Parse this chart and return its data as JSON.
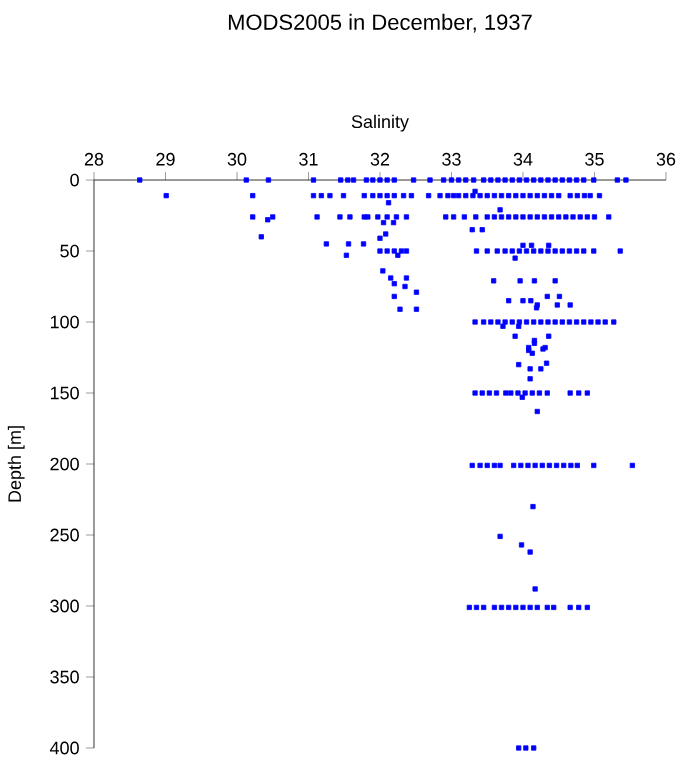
{
  "chart_data": {
    "type": "scatter",
    "title": "MODS2005 in December, 1937",
    "xlabel": "Salinity",
    "ylabel": "Depth [m]",
    "color": "#0000ff",
    "marker": "square",
    "xlim": [
      28,
      36
    ],
    "ylim": [
      400,
      0
    ],
    "xticks": [
      28,
      29,
      30,
      31,
      32,
      33,
      34,
      35,
      36
    ],
    "yticks": [
      0,
      50,
      100,
      150,
      200,
      250,
      300,
      350,
      400
    ],
    "x": [
      28.64,
      30.13,
      30.44,
      31.07,
      31.45,
      31.55,
      31.63,
      31.81,
      31.9,
      32.0,
      32.1,
      32.2,
      32.47,
      32.7,
      32.89,
      33.0,
      33.1,
      33.2,
      33.31,
      33.45,
      33.55,
      33.65,
      33.75,
      33.85,
      33.95,
      34.05,
      34.15,
      34.25,
      34.35,
      34.45,
      34.55,
      34.65,
      34.75,
      34.85,
      34.99,
      35.32,
      35.44,
      29.01,
      30.22,
      31.07,
      31.18,
      31.3,
      31.49,
      31.78,
      31.9,
      32.0,
      32.1,
      32.2,
      32.33,
      32.44,
      32.68,
      32.84,
      32.95,
      33.03,
      33.1,
      33.2,
      33.3,
      33.4,
      33.5,
      33.6,
      33.7,
      33.8,
      33.9,
      34.0,
      34.1,
      34.2,
      34.3,
      34.4,
      34.5,
      34.66,
      34.76,
      34.86,
      34.94,
      35.07,
      33.33,
      32.12,
      33.68,
      30.22,
      30.5,
      31.12,
      31.44,
      31.58,
      31.78,
      31.83,
      31.97,
      32.1,
      32.23,
      32.37,
      32.92,
      33.03,
      33.18,
      33.34,
      33.5,
      33.6,
      33.7,
      33.8,
      33.9,
      34.0,
      34.1,
      34.2,
      34.3,
      34.4,
      34.5,
      34.6,
      34.7,
      34.8,
      34.9,
      35.0,
      35.2,
      30.43,
      32.05,
      32.19,
      33.29,
      33.43,
      32.08,
      30.34,
      32.0,
      31.25,
      31.56,
      31.77,
      34.0,
      34.12,
      34.36,
      32.0,
      32.1,
      32.2,
      32.3,
      32.37,
      33.35,
      33.5,
      33.64,
      33.75,
      33.85,
      33.95,
      34.05,
      34.15,
      34.25,
      34.35,
      34.45,
      34.55,
      34.65,
      34.75,
      34.85,
      34.99,
      35.36,
      31.53,
      32.25,
      33.89,
      32.04,
      32.15,
      32.37,
      33.59,
      33.96,
      34.16,
      34.45,
      32.2,
      32.35,
      32.51,
      32.2,
      34.34,
      34.51,
      33.8,
      34.0,
      34.11,
      34.2,
      34.48,
      34.66,
      32.28,
      32.51,
      34.19,
      33.33,
      33.45,
      33.55,
      33.65,
      33.75,
      33.85,
      33.95,
      34.05,
      34.15,
      34.25,
      34.35,
      34.45,
      34.55,
      34.65,
      34.75,
      34.85,
      34.95,
      35.05,
      35.15,
      35.27,
      33.72,
      33.94,
      33.89,
      34.36,
      34.16,
      34.08,
      34.31,
      34.13,
      34.16,
      34.08,
      34.28,
      34.33,
      33.94,
      34.1,
      34.25,
      34.1,
      33.33,
      33.43,
      33.53,
      33.63,
      33.76,
      33.83,
      33.93,
      34.03,
      34.13,
      34.23,
      34.34,
      34.66,
      34.78,
      34.9,
      33.99,
      34.2,
      33.29,
      33.4,
      33.5,
      33.6,
      33.68,
      33.87,
      33.97,
      34.07,
      34.17,
      34.27,
      34.37,
      34.47,
      34.57,
      34.67,
      34.76,
      34.99,
      35.53,
      34.14,
      33.68,
      33.98,
      34.1,
      34.17,
      33.25,
      33.35,
      33.45,
      33.6,
      33.7,
      33.8,
      33.9,
      34.0,
      34.1,
      34.2,
      34.34,
      34.43,
      34.66,
      34.78,
      34.9,
      33.94,
      34.04,
      34.15
    ],
    "values": [
      0,
      0,
      0,
      0,
      0,
      0,
      0,
      0,
      0,
      0,
      0,
      0,
      0,
      0,
      0,
      0,
      0,
      0,
      0,
      0,
      0,
      0,
      0,
      0,
      0,
      0,
      0,
      0,
      0,
      0,
      0,
      0,
      0,
      0,
      0,
      0,
      0,
      11,
      11,
      11,
      11,
      11,
      11,
      11,
      11,
      11,
      11,
      11,
      11,
      11,
      11,
      11,
      11,
      11,
      11,
      11,
      11,
      11,
      11,
      11,
      11,
      11,
      11,
      11,
      11,
      11,
      11,
      11,
      11,
      11,
      11,
      11,
      11,
      11,
      8,
      16,
      21,
      26,
      26,
      26,
      26,
      26,
      26,
      26,
      26,
      26,
      26,
      26,
      26,
      26,
      26,
      26,
      26,
      26,
      26,
      26,
      26,
      26,
      26,
      26,
      26,
      26,
      26,
      26,
      26,
      26,
      26,
      26,
      26,
      28,
      30,
      30,
      35,
      35,
      38,
      40,
      41,
      45,
      45,
      45,
      46,
      46,
      46,
      50,
      50,
      50,
      50,
      50,
      50,
      50,
      50,
      50,
      50,
      50,
      50,
      50,
      50,
      50,
      50,
      50,
      50,
      50,
      50,
      50,
      50,
      53,
      53,
      55,
      64,
      69,
      69,
      71,
      71,
      71,
      71,
      73,
      75,
      79,
      82,
      82,
      82,
      85,
      85,
      85,
      88,
      88,
      88,
      91,
      91,
      90,
      100,
      100,
      100,
      100,
      100,
      100,
      100,
      100,
      100,
      100,
      100,
      100,
      100,
      100,
      100,
      100,
      100,
      100,
      100,
      100,
      103,
      103,
      110,
      110,
      113,
      118,
      118,
      122,
      115,
      120,
      119,
      129,
      130,
      133,
      133,
      140,
      150,
      150,
      150,
      150,
      150,
      150,
      150,
      150,
      150,
      150,
      150,
      150,
      150,
      150,
      153,
      163,
      201,
      201,
      201,
      201,
      201,
      201,
      201,
      201,
      201,
      201,
      201,
      201,
      201,
      201,
      201,
      201,
      201,
      230,
      251,
      257,
      262,
      288,
      301,
      301,
      301,
      301,
      301,
      301,
      301,
      301,
      301,
      301,
      301,
      301,
      301,
      301,
      301,
      400,
      400,
      400
    ]
  }
}
